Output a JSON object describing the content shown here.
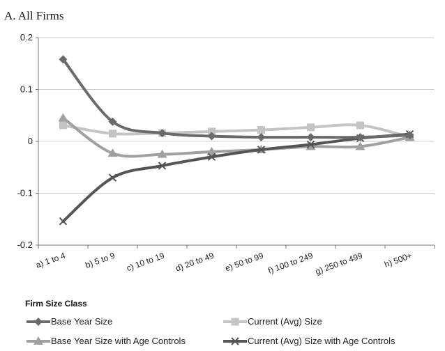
{
  "chart_data": {
    "type": "line",
    "title": "A.  All Firms",
    "xlabel": "Firm Size Class",
    "ylabel": "",
    "categories": [
      "a) 1 to 4",
      "b) 5 to 9",
      "c) 10 to 19",
      "d) 20 to 49",
      "e) 50 to 99",
      "f) 100 to 249",
      "g) 250 to 499",
      "h) 500+"
    ],
    "ylim": [
      -0.2,
      0.2
    ],
    "yticks": [
      {
        "value": 0.2,
        "label": "0.2"
      },
      {
        "value": 0.1,
        "label": "0.1"
      },
      {
        "value": 0,
        "label": "0"
      },
      {
        "value": -0.1,
        "label": "-0.1"
      },
      {
        "value": -0.2,
        "label": "-0.2"
      }
    ],
    "grid": true,
    "legend_position": "bottom",
    "series": [
      {
        "name": "Base Year Size",
        "marker": "diamond",
        "color": "#6b6b6b",
        "values": [
          0.158,
          0.038,
          0.016,
          0.01,
          0.008,
          0.008,
          0.008,
          0.012
        ]
      },
      {
        "name": "Current (Avg) Size",
        "marker": "square",
        "color": "#c4c4c4",
        "values": [
          0.031,
          0.015,
          0.016,
          0.019,
          0.022,
          0.027,
          0.031,
          0.008
        ]
      },
      {
        "name": "Base Year Size with Age Controls",
        "marker": "triangle",
        "color": "#a0a0a0",
        "values": [
          0.045,
          -0.023,
          -0.025,
          -0.02,
          -0.016,
          -0.01,
          -0.01,
          0.008
        ]
      },
      {
        "name": "Current (Avg) Size with Age Controls",
        "marker": "x",
        "color": "#555555",
        "values": [
          -0.154,
          -0.07,
          -0.047,
          -0.03,
          -0.016,
          -0.006,
          0.006,
          0.014
        ]
      }
    ]
  }
}
